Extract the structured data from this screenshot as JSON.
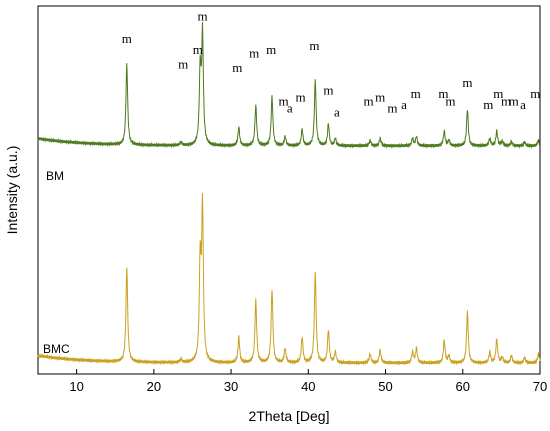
{
  "chart_data": {
    "type": "line",
    "xlabel": "2Theta [Deg]",
    "ylabel": "Intensity (a.u.)",
    "xlim": [
      5,
      70
    ],
    "xticks": [
      10,
      20,
      30,
      40,
      50,
      60,
      70
    ],
    "yticks": false,
    "grid": false,
    "series": [
      {
        "name": "BM",
        "color": "#4d7a1e",
        "baseline": 0.62,
        "peaks": [
          {
            "x": 16.5,
            "h": 0.22
          },
          {
            "x": 23.5,
            "h": 0.01
          },
          {
            "x": 26.0,
            "h": 0.2
          },
          {
            "x": 26.3,
            "h": 0.3
          },
          {
            "x": 31.0,
            "h": 0.05
          },
          {
            "x": 33.2,
            "h": 0.11
          },
          {
            "x": 35.3,
            "h": 0.135
          },
          {
            "x": 37.0,
            "h": 0.025
          },
          {
            "x": 39.2,
            "h": 0.045
          },
          {
            "x": 40.9,
            "h": 0.18
          },
          {
            "x": 42.6,
            "h": 0.06
          },
          {
            "x": 43.5,
            "h": 0.02
          },
          {
            "x": 48.0,
            "h": 0.015
          },
          {
            "x": 49.3,
            "h": 0.02
          },
          {
            "x": 53.5,
            "h": 0.02
          },
          {
            "x": 54.0,
            "h": 0.025
          },
          {
            "x": 57.6,
            "h": 0.04
          },
          {
            "x": 58.2,
            "h": 0.015
          },
          {
            "x": 60.6,
            "h": 0.1
          },
          {
            "x": 63.5,
            "h": 0.02
          },
          {
            "x": 64.4,
            "h": 0.04
          },
          {
            "x": 65.1,
            "h": 0.012
          },
          {
            "x": 66.3,
            "h": 0.012
          },
          {
            "x": 68.0,
            "h": 0.01
          },
          {
            "x": 69.8,
            "h": 0.015
          }
        ]
      },
      {
        "name": "BMC",
        "color": "#c9a020",
        "baseline": 0.03,
        "peaks": [
          {
            "x": 16.5,
            "h": 0.26
          },
          {
            "x": 23.5,
            "h": 0.01
          },
          {
            "x": 26.0,
            "h": 0.27
          },
          {
            "x": 26.3,
            "h": 0.42
          },
          {
            "x": 31.0,
            "h": 0.07
          },
          {
            "x": 33.2,
            "h": 0.17
          },
          {
            "x": 35.3,
            "h": 0.2
          },
          {
            "x": 37.0,
            "h": 0.04
          },
          {
            "x": 39.2,
            "h": 0.07
          },
          {
            "x": 40.9,
            "h": 0.25
          },
          {
            "x": 42.6,
            "h": 0.09
          },
          {
            "x": 43.5,
            "h": 0.03
          },
          {
            "x": 48.0,
            "h": 0.025
          },
          {
            "x": 49.3,
            "h": 0.035
          },
          {
            "x": 53.5,
            "h": 0.03
          },
          {
            "x": 54.0,
            "h": 0.04
          },
          {
            "x": 57.6,
            "h": 0.06
          },
          {
            "x": 58.2,
            "h": 0.02
          },
          {
            "x": 60.6,
            "h": 0.14
          },
          {
            "x": 63.5,
            "h": 0.03
          },
          {
            "x": 64.4,
            "h": 0.065
          },
          {
            "x": 65.1,
            "h": 0.015
          },
          {
            "x": 66.3,
            "h": 0.02
          },
          {
            "x": 68.0,
            "h": 0.015
          },
          {
            "x": 69.8,
            "h": 0.025
          }
        ]
      }
    ],
    "peak_labels": [
      {
        "x": 16.5,
        "y": 0.9,
        "text": "m"
      },
      {
        "x": 23.8,
        "y": 0.83,
        "text": "m"
      },
      {
        "x": 25.7,
        "y": 0.87,
        "text": "m"
      },
      {
        "x": 26.3,
        "y": 0.96,
        "text": "m"
      },
      {
        "x": 30.8,
        "y": 0.82,
        "text": "m"
      },
      {
        "x": 33.0,
        "y": 0.86,
        "text": "m"
      },
      {
        "x": 35.2,
        "y": 0.87,
        "text": "m"
      },
      {
        "x": 36.8,
        "y": 0.73,
        "text": "m"
      },
      {
        "x": 37.6,
        "y": 0.71,
        "text": "a"
      },
      {
        "x": 39.0,
        "y": 0.74,
        "text": "m"
      },
      {
        "x": 40.8,
        "y": 0.88,
        "text": "m"
      },
      {
        "x": 42.6,
        "y": 0.76,
        "text": "m"
      },
      {
        "x": 43.7,
        "y": 0.7,
        "text": "a"
      },
      {
        "x": 47.8,
        "y": 0.73,
        "text": "m"
      },
      {
        "x": 49.3,
        "y": 0.74,
        "text": "m"
      },
      {
        "x": 50.9,
        "y": 0.71,
        "text": "m"
      },
      {
        "x": 52.4,
        "y": 0.72,
        "text": "a"
      },
      {
        "x": 53.9,
        "y": 0.75,
        "text": "m"
      },
      {
        "x": 57.5,
        "y": 0.75,
        "text": "m"
      },
      {
        "x": 58.4,
        "y": 0.73,
        "text": "m"
      },
      {
        "x": 60.6,
        "y": 0.78,
        "text": "m"
      },
      {
        "x": 63.3,
        "y": 0.72,
        "text": "m"
      },
      {
        "x": 64.6,
        "y": 0.75,
        "text": "m"
      },
      {
        "x": 65.6,
        "y": 0.73,
        "text": "m"
      },
      {
        "x": 66.6,
        "y": 0.73,
        "text": "m"
      },
      {
        "x": 67.8,
        "y": 0.72,
        "text": "a"
      },
      {
        "x": 69.4,
        "y": 0.75,
        "text": "m"
      }
    ]
  }
}
